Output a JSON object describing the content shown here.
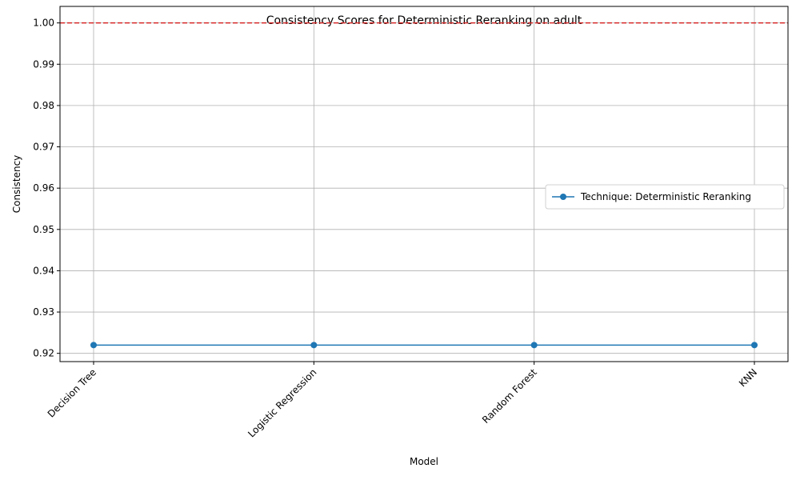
{
  "chart_data": {
    "type": "line",
    "title": "Consistency Scores for Deterministic Reranking on adult",
    "xlabel": "Model",
    "ylabel": "Consistency",
    "categories": [
      "Decision Tree",
      "Logistic Regression",
      "Random Forest",
      "KNN"
    ],
    "series": [
      {
        "name": "Technique: Deterministic Reranking",
        "values": [
          0.922,
          0.922,
          0.922,
          0.922
        ],
        "color": "#1f77b4",
        "marker": "circle"
      }
    ],
    "reference_line": {
      "y": 1.0,
      "color": "#d62728",
      "style": "dashed"
    },
    "ylim": [
      0.918,
      1.004
    ],
    "yticks": [
      "0.92",
      "0.93",
      "0.94",
      "0.95",
      "0.96",
      "0.97",
      "0.98",
      "0.99",
      "1.00"
    ],
    "ytick_values": [
      0.92,
      0.93,
      0.94,
      0.95,
      0.96,
      0.97,
      0.98,
      0.99,
      1.0
    ],
    "grid": true,
    "legend_position": "center-right"
  }
}
